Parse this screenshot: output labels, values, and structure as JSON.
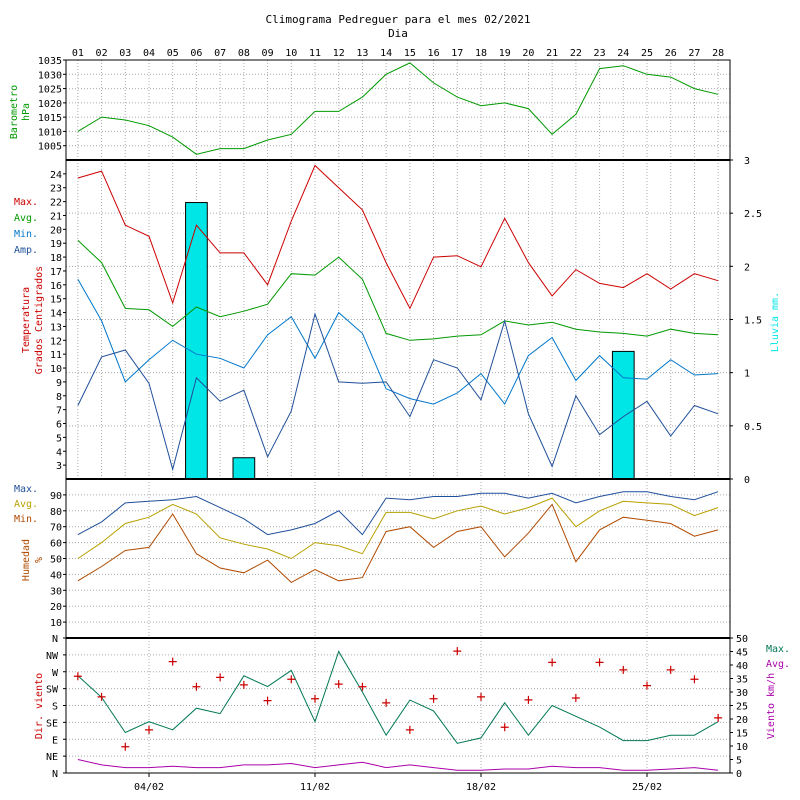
{
  "title": "Climograma Pedreguer para el mes 02/2021",
  "subtitle": "Dia",
  "days": [
    "01",
    "02",
    "03",
    "04",
    "05",
    "06",
    "07",
    "08",
    "09",
    "10",
    "11",
    "12",
    "13",
    "14",
    "15",
    "16",
    "17",
    "18",
    "19",
    "20",
    "21",
    "22",
    "23",
    "24",
    "25",
    "26",
    "27",
    "28"
  ],
  "week_labels": [
    "04/02",
    "11/02",
    "18/02",
    "25/02"
  ],
  "colors": {
    "red": "#cc0000",
    "green": "#009900",
    "light_blue": "#0077cc",
    "dark_blue": "#1f4f9a",
    "yellow": "#b8a000",
    "brown": "#b04a00",
    "teal": "#007755",
    "magenta": "#aa00aa",
    "rain_fill": "#00e5e5",
    "grid": "#aaaaaa"
  },
  "chart_data": [
    {
      "type": "line",
      "panel": "barometer",
      "ylabel": [
        "Barometro",
        "hPa"
      ],
      "ylim": [
        1000,
        1035
      ],
      "yticks": [
        1005,
        1010,
        1015,
        1020,
        1025,
        1030,
        1035
      ],
      "series": [
        {
          "values": [
            1010,
            1015,
            1014,
            1012,
            1008,
            1002,
            1004,
            1004,
            1007,
            1009,
            1017,
            1017,
            1022,
            1030,
            1034,
            1027,
            1022,
            1019,
            1020,
            1018,
            1009,
            1016,
            1032,
            1033,
            1030,
            1029,
            1025,
            1023
          ]
        }
      ]
    },
    {
      "type": "line",
      "panel": "temperature",
      "ylabel": [
        "Temperatura",
        "Grados Centigrados"
      ],
      "ylim": [
        2,
        25
      ],
      "yticks": [
        3,
        4,
        5,
        6,
        7,
        8,
        9,
        10,
        11,
        12,
        13,
        14,
        15,
        16,
        17,
        18,
        19,
        20,
        21,
        22,
        23,
        24
      ],
      "legend": [
        "Max.",
        "Avg.",
        "Min.",
        "Amp."
      ],
      "series": [
        {
          "name": "Max.",
          "values": [
            23.7,
            24.2,
            20.3,
            19.5,
            14.7,
            20.3,
            18.3,
            18.3,
            16.0,
            20.6,
            24.6,
            23.0,
            21.4,
            17.6,
            14.3,
            18.0,
            18.1,
            17.3,
            20.8,
            17.6,
            15.2,
            17.1,
            16.1,
            15.8,
            16.8,
            15.7,
            16.8,
            16.3
          ]
        },
        {
          "name": "Avg.",
          "values": [
            19.2,
            17.6,
            14.3,
            14.2,
            13.0,
            14.4,
            13.7,
            14.1,
            14.6,
            16.8,
            16.7,
            18.0,
            16.4,
            12.5,
            12.0,
            12.1,
            12.3,
            12.4,
            13.4,
            13.1,
            13.3,
            12.8,
            12.6,
            12.5,
            12.3,
            12.8,
            12.5,
            12.4
          ]
        },
        {
          "name": "Min.",
          "values": [
            16.4,
            13.4,
            9.0,
            10.6,
            12.0,
            11.0,
            10.7,
            10.0,
            12.4,
            13.7,
            10.7,
            14.0,
            12.5,
            8.5,
            7.8,
            7.4,
            8.2,
            9.6,
            7.4,
            10.9,
            12.2,
            9.1,
            10.9,
            9.3,
            9.2,
            10.6,
            9.5,
            9.6
          ]
        },
        {
          "name": "Amp.",
          "values": [
            7.3,
            10.8,
            11.3,
            8.9,
            2.7,
            9.3,
            7.6,
            8.4,
            3.6,
            6.9,
            13.9,
            9.0,
            8.9,
            9.0,
            6.5,
            10.6,
            10.0,
            7.7,
            13.4,
            6.7,
            2.9,
            8.0,
            5.2,
            6.5,
            7.6,
            5.1,
            7.3,
            6.7
          ]
        }
      ]
    },
    {
      "type": "bar",
      "panel": "rain",
      "ylabel": [
        "Lluvia mm."
      ],
      "ylim": [
        0,
        3
      ],
      "yticks": [
        "0",
        "0.5",
        "1",
        "1.5",
        "2",
        "2.5",
        "3"
      ],
      "values": [
        0,
        0,
        0,
        0,
        0,
        2.6,
        0,
        0.2,
        0,
        0,
        0,
        0,
        0,
        0,
        0,
        0,
        0,
        0,
        0,
        0,
        0,
        0,
        0,
        1.2,
        0,
        0,
        0,
        0
      ]
    },
    {
      "type": "line",
      "panel": "humidity",
      "ylabel": [
        "Humedad",
        "%"
      ],
      "ylim": [
        0,
        100
      ],
      "yticks": [
        10,
        20,
        30,
        40,
        50,
        60,
        70,
        80,
        90
      ],
      "legend": [
        "Max.",
        "Avg.",
        "Min."
      ],
      "series": [
        {
          "name": "Max.",
          "values": [
            65,
            73,
            85,
            86,
            87,
            89,
            82,
            75,
            65,
            68,
            72,
            80,
            65,
            88,
            87,
            89,
            89,
            91,
            91,
            88,
            91,
            85,
            89,
            92,
            92,
            89,
            87,
            92
          ]
        },
        {
          "name": "Avg.",
          "values": [
            50,
            60,
            72,
            76,
            84,
            78,
            63,
            59,
            56,
            50,
            60,
            58,
            53,
            79,
            79,
            75,
            80,
            83,
            78,
            82,
            88,
            70,
            80,
            86,
            85,
            84,
            77,
            82
          ]
        },
        {
          "name": "Min.",
          "values": [
            36,
            45,
            55,
            57,
            78,
            53,
            44,
            41,
            49,
            35,
            43,
            36,
            38,
            67,
            70,
            57,
            67,
            70,
            51,
            66,
            84,
            48,
            68,
            76,
            74,
            72,
            64,
            68
          ]
        }
      ]
    },
    {
      "type": "line",
      "panel": "wind",
      "ylabel_left": [
        "Dir. viento"
      ],
      "ylabel_right": [
        "Viento km/h"
      ],
      "dir_ticks": [
        "N",
        "NE",
        "E",
        "SE",
        "S",
        "SW",
        "W",
        "NW",
        "N"
      ],
      "speed_ylim": [
        0,
        50
      ],
      "speed_ticks": [
        0,
        5,
        10,
        15,
        20,
        25,
        30,
        35,
        40,
        45,
        50
      ],
      "legend": [
        "Max.",
        "Avg."
      ],
      "series": [
        {
          "name": "Max.",
          "values": [
            36,
            28,
            15,
            19,
            16,
            24,
            22,
            36,
            32,
            38,
            19,
            45,
            30,
            14,
            27,
            23,
            11,
            13,
            26,
            14,
            25,
            21,
            17,
            12,
            12,
            14,
            14,
            19
          ]
        },
        {
          "name": "Avg.",
          "values": [
            5,
            3,
            2,
            2,
            2.5,
            2,
            2,
            3,
            3,
            3.5,
            2,
            3,
            4,
            2,
            3,
            2,
            1,
            1,
            1.5,
            1.5,
            2.5,
            2,
            2,
            1,
            1,
            1.5,
            2,
            1
          ]
        }
      ],
      "dir_points": [
        {
          "day": 1,
          "deg": 258
        },
        {
          "day": 2,
          "deg": 203
        },
        {
          "day": 3,
          "deg": 70
        },
        {
          "day": 4,
          "deg": 115
        },
        {
          "day": 5,
          "deg": 297
        },
        {
          "day": 6,
          "deg": 230
        },
        {
          "day": 7,
          "deg": 255
        },
        {
          "day": 8,
          "deg": 235
        },
        {
          "day": 9,
          "deg": 193
        },
        {
          "day": 10,
          "deg": 250
        },
        {
          "day": 11,
          "deg": 198
        },
        {
          "day": 12,
          "deg": 237
        },
        {
          "day": 13,
          "deg": 230
        },
        {
          "day": 14,
          "deg": 187
        },
        {
          "day": 15,
          "deg": 115
        },
        {
          "day": 16,
          "deg": 198
        },
        {
          "day": 17,
          "deg": 325
        },
        {
          "day": 18,
          "deg": 203
        },
        {
          "day": 19,
          "deg": 122
        },
        {
          "day": 20,
          "deg": 195
        },
        {
          "day": 21,
          "deg": 295
        },
        {
          "day": 22,
          "deg": 200
        },
        {
          "day": 23,
          "deg": 295
        },
        {
          "day": 24,
          "deg": 275
        },
        {
          "day": 25,
          "deg": 233
        },
        {
          "day": 26,
          "deg": 275
        },
        {
          "day": 27,
          "deg": 250
        },
        {
          "day": 28,
          "deg": 147
        }
      ]
    }
  ]
}
